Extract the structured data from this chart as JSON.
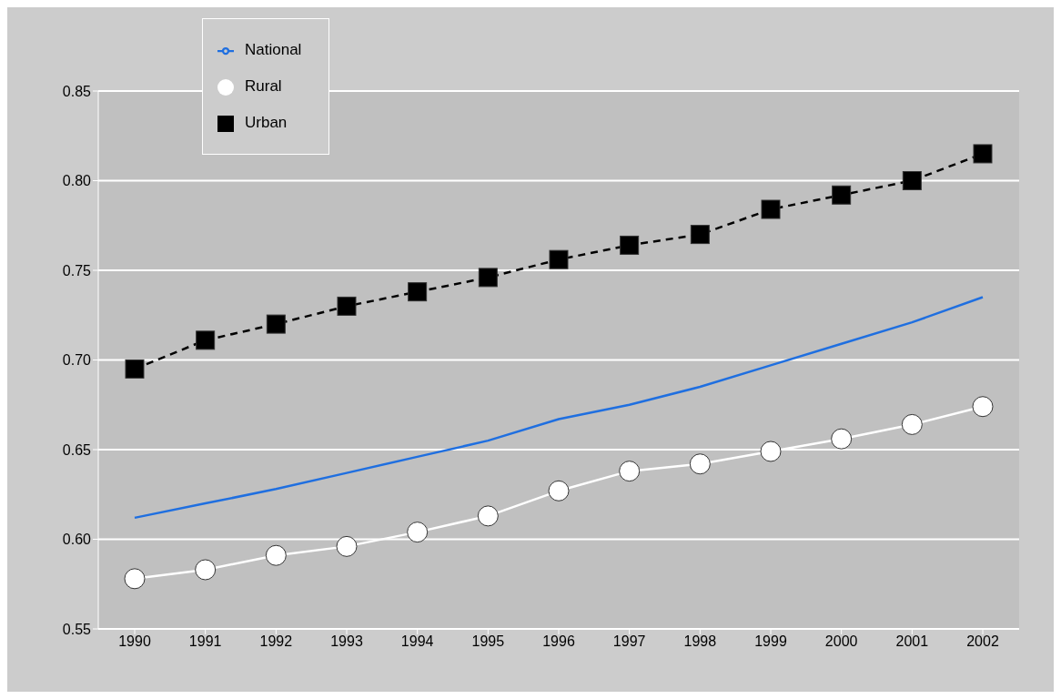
{
  "chart_data": {
    "type": "line",
    "categories": [
      "1990",
      "1991",
      "1992",
      "1993",
      "1994",
      "1995",
      "1996",
      "1997",
      "1998",
      "1999",
      "2000",
      "2001",
      "2002"
    ],
    "series": [
      {
        "name": "National",
        "color": "#1f6fe0",
        "marker": "none",
        "line_style": "solid",
        "values": [
          0.612,
          0.62,
          0.628,
          0.637,
          0.646,
          0.655,
          0.667,
          0.675,
          0.685,
          0.697,
          0.709,
          0.721,
          0.735
        ]
      },
      {
        "name": "Urban",
        "color": "#000000",
        "marker": "square",
        "line_style": "dashed",
        "values": [
          0.695,
          0.711,
          0.72,
          0.73,
          0.738,
          0.746,
          0.756,
          0.764,
          0.77,
          0.784,
          0.792,
          0.8,
          0.815
        ]
      },
      {
        "name": "Rural",
        "color": "#ffffff",
        "marker": "circle",
        "line_style": "solid",
        "values": [
          0.578,
          0.583,
          0.591,
          0.596,
          0.604,
          0.613,
          0.627,
          0.638,
          0.642,
          0.649,
          0.656,
          0.664,
          0.674
        ]
      }
    ],
    "ylim": [
      0.55,
      0.85
    ],
    "yticks": [
      0.55,
      {
        "value": 0.6,
        "label": "0.60"
      },
      0.65,
      {
        "value": 0.7,
        "label": "0.70"
      },
      0.75,
      {
        "value": 0.8,
        "label": "0.80"
      },
      0.85
    ],
    "grid": "y",
    "legend": "top left"
  }
}
